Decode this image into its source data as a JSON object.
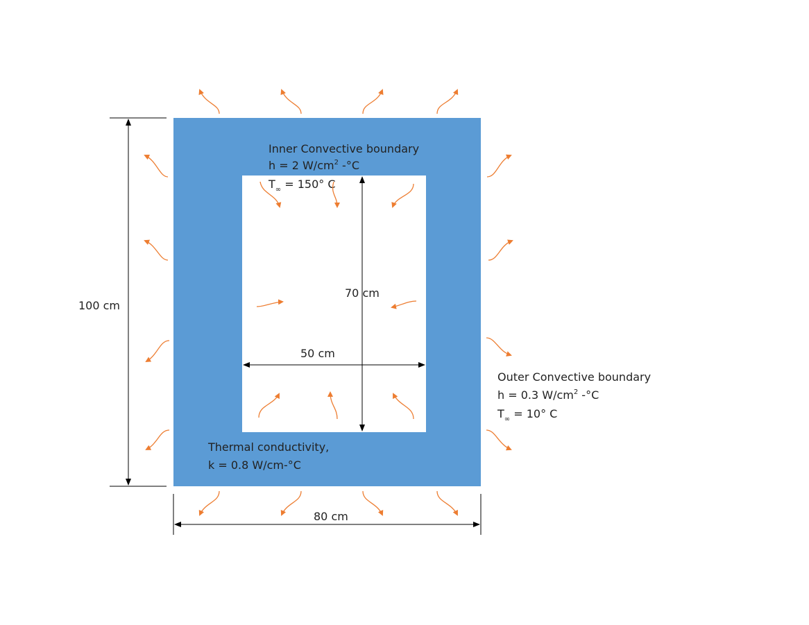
{
  "colors": {
    "wall": "#5b9bd5",
    "cavity": "#ffffff",
    "arrow": "#ed7d31",
    "dimension": "#000000",
    "text": "#222222"
  },
  "icons": {
    "heat_flow": "curved-arrow-icon",
    "dimension": "double-headed-arrow-icon"
  },
  "dimensions": {
    "outer_height": "100 cm",
    "outer_width": "80 cm",
    "inner_height": "70 cm",
    "inner_width": "50 cm"
  },
  "inner_boundary": {
    "title": "Inner Convective boundary",
    "h_prefix": "h = 2 W/cm",
    "h_exp": "2",
    "h_suffix": " -°C",
    "t_symbol": "T",
    "t_sub": "∞",
    "t_value": " = 150° C"
  },
  "outer_boundary": {
    "title": "Outer Convective boundary",
    "h_prefix": "h = 0.3 W/cm",
    "h_exp": "2",
    "h_suffix": " -°C",
    "t_symbol": "T",
    "t_sub": "∞",
    "t_value": " = 10° C"
  },
  "conductivity": {
    "line1": "Thermal conductivity,",
    "line2": "k = 0.8 W/cm-°C"
  }
}
